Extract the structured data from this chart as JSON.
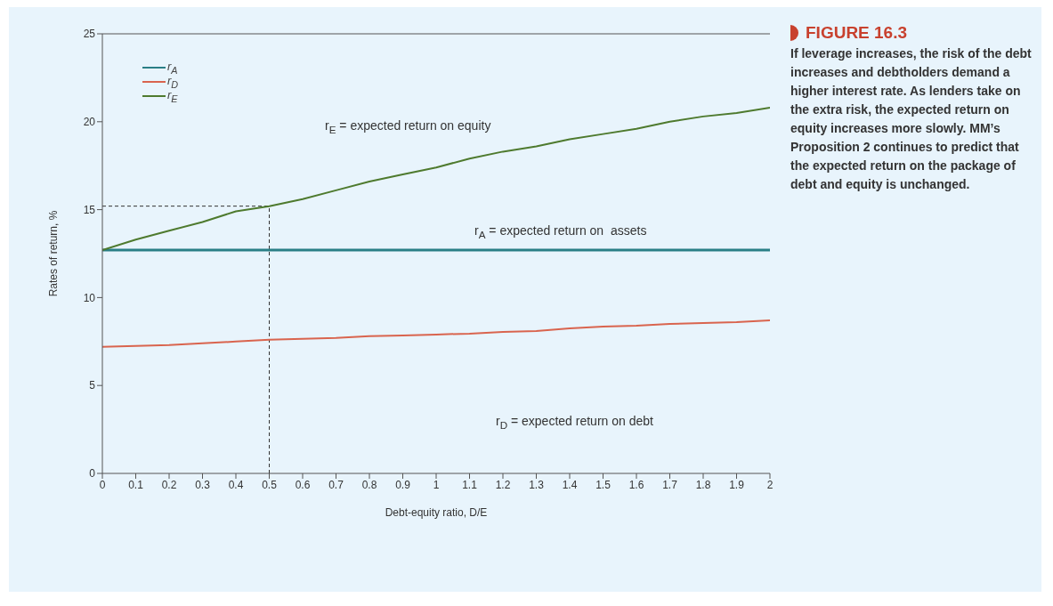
{
  "chart_data": {
    "type": "line",
    "title": "FIGURE 16.3",
    "subtitle": "If leverage increases, the risk of the debt increases and debtholders demand a higher interest rate. As lenders take on the extra risk, the expected return on equity increases more slowly. MM’s Proposition 2 continues to predict that the expected return on the package of debt and equity is unchanged.",
    "xlabel": "Debt-equity ratio, D/E",
    "ylabel": "Rates of return, %",
    "series": [
      {
        "name": "r$_{A}$",
        "color": "#2a7f86",
        "x": [
          0,
          2
        ],
        "values": [
          12.7,
          12.7
        ]
      },
      {
        "name": "r$_{D}$",
        "color": "#d9644e",
        "x": [
          0,
          0.1,
          0.2,
          0.3,
          0.4,
          0.5,
          0.6,
          0.7,
          0.8,
          0.9,
          1,
          1.1,
          1.2,
          1.3,
          1.4,
          1.5,
          1.6,
          1.7,
          1.8,
          1.9,
          2
        ],
        "values": [
          7.2,
          7.25,
          7.3,
          7.4,
          7.5,
          7.6,
          7.65,
          7.7,
          7.8,
          7.85,
          7.9,
          7.95,
          8.05,
          8.1,
          8.25,
          8.35,
          8.4,
          8.5,
          8.55,
          8.6,
          8.7
        ]
      },
      {
        "name": "r$_{E}$",
        "color": "#4e7a2e",
        "x": [
          0,
          0.1,
          0.2,
          0.3,
          0.4,
          0.5,
          0.6,
          0.7,
          0.8,
          0.9,
          1,
          1.1,
          1.2,
          1.3,
          1.4,
          1.5,
          1.6,
          1.7,
          1.8,
          1.9,
          2
        ],
        "values": [
          12.7,
          13.3,
          13.8,
          14.3,
          14.9,
          15.2,
          15.6,
          16.1,
          16.6,
          17,
          17.4,
          17.9,
          18.3,
          18.6,
          19,
          19.3,
          19.6,
          20,
          20.3,
          20.5,
          20.8
        ]
      }
    ],
    "xlim": [
      0,
      2
    ],
    "xticks": [
      0,
      0.1,
      0.2,
      0.3,
      0.4,
      0.5,
      0.6,
      0.7,
      0.8,
      0.9,
      1,
      1.1,
      1.2,
      1.3,
      1.4,
      1.5,
      1.6,
      1.7,
      1.8,
      1.9,
      2
    ],
    "ylim": [
      0,
      25
    ],
    "yticks": [
      0,
      5,
      10,
      15,
      20,
      25
    ],
    "ref_lines": [
      {
        "axis": "x",
        "value": 0.5,
        "line_style": "dashed"
      },
      {
        "axis": "y",
        "value": 15.2,
        "line_style": "dashed"
      }
    ],
    "annotations": [
      "r$_{E}$ = expected return on equity",
      "r$_{A}$ = expected return on  assets",
      "r$_{D}$ = expected return on debt"
    ],
    "legend": "top left",
    "marker": "none",
    "line_style": "solid",
    "grid": false
  }
}
